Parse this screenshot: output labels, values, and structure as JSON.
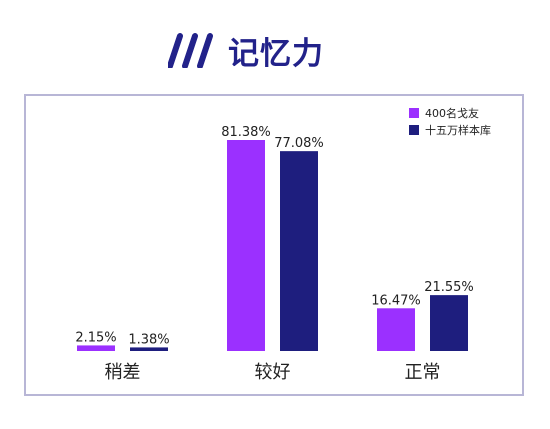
{
  "header": {
    "title": "记忆力",
    "icon": "triple-slash-logo-icon"
  },
  "colors": {
    "title": "#22228a",
    "frame": "#b8b6d6",
    "series1": "#9b30ff",
    "series2": "#1e1e7e"
  },
  "chart_data": {
    "type": "bar",
    "categories": [
      "稍差",
      "较好",
      "正常"
    ],
    "series": [
      {
        "name": "400名戈友",
        "values": [
          2.15,
          81.38,
          16.47
        ],
        "labels": [
          "2.15%",
          "81.38%",
          "16.47%"
        ]
      },
      {
        "name": "十五万样本库",
        "values": [
          1.38,
          77.08,
          21.55
        ],
        "labels": [
          "1.38%",
          "77.08%",
          "21.55%"
        ]
      }
    ],
    "title": "记忆力",
    "ylim": [
      0,
      100
    ],
    "grid": false,
    "legend": "top-right"
  }
}
